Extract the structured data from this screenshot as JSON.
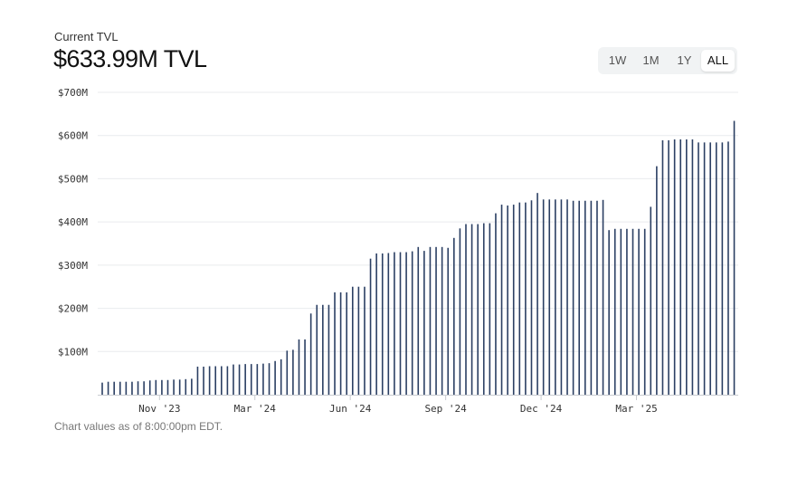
{
  "header": {
    "subtitle": "Current TVL",
    "value": "$633.99M TVL"
  },
  "range_buttons": [
    {
      "label": "1W",
      "active": false
    },
    {
      "label": "1M",
      "active": false
    },
    {
      "label": "1Y",
      "active": false
    },
    {
      "label": "ALL",
      "active": true
    }
  ],
  "footnote": "Chart values as of 8:00:00pm EDT.",
  "colors": {
    "bar": "#2b3f63",
    "grid": "#e9ebee",
    "axis": "#c9ccd1"
  },
  "chart_data": {
    "type": "bar",
    "title": "",
    "xlabel": "",
    "ylabel": "",
    "ylim": [
      0,
      700
    ],
    "unit": "$M",
    "y_ticks": [
      {
        "value": 100,
        "label": "$100M"
      },
      {
        "value": 200,
        "label": "$200M"
      },
      {
        "value": 300,
        "label": "$300M"
      },
      {
        "value": 400,
        "label": "$400M"
      },
      {
        "value": 500,
        "label": "$500M"
      },
      {
        "value": 600,
        "label": "$600M"
      },
      {
        "value": 700,
        "label": "$700M"
      }
    ],
    "x_ticks": [
      {
        "index": 9,
        "label": "Nov '23"
      },
      {
        "index": 25,
        "label": "Mar '24"
      },
      {
        "index": 41,
        "label": "Jun '24"
      },
      {
        "index": 57,
        "label": "Sep '24"
      },
      {
        "index": 73,
        "label": "Dec '24"
      },
      {
        "index": 89,
        "label": "Mar '25"
      }
    ],
    "values": [
      28,
      30,
      30,
      30,
      30,
      30,
      31,
      31,
      33,
      34,
      34,
      34,
      35,
      35,
      36,
      37,
      65,
      65,
      66,
      66,
      66,
      66,
      70,
      70,
      71,
      71,
      71,
      72,
      73,
      78,
      82,
      102,
      104,
      128,
      128,
      188,
      208,
      208,
      208,
      237,
      237,
      237,
      250,
      250,
      250,
      315,
      327,
      327,
      328,
      330,
      330,
      330,
      332,
      342,
      333,
      342,
      342,
      342,
      340,
      363,
      385,
      395,
      395,
      395,
      397,
      397,
      420,
      440,
      438,
      440,
      445,
      445,
      450,
      467,
      452,
      452,
      452,
      452,
      452,
      449,
      449,
      449,
      449,
      449,
      451,
      381,
      384,
      384,
      384,
      384,
      384,
      384,
      435,
      529,
      589,
      589,
      591,
      591,
      591,
      591,
      584,
      584,
      584,
      584,
      584,
      586,
      633.99
    ]
  }
}
